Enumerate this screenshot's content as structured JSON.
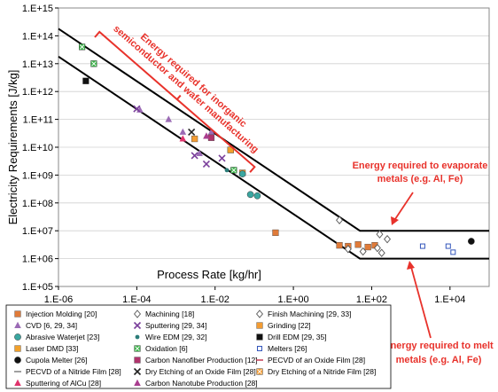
{
  "chart_data": {
    "type": "scatter",
    "title": "",
    "xlabel": "Process Rate [kg/hr]",
    "ylabel": "Electricity Requirements [J/kg]",
    "xscale": "log",
    "yscale": "log",
    "xlim": [
      1e-06,
      100000.0
    ],
    "ylim": [
      100000.0,
      1000000000000000.0
    ],
    "x_ticks": [
      "1.E-06",
      "1.E-04",
      "1.E-02",
      "1.E+00",
      "1.E+02",
      "1.E+04"
    ],
    "y_ticks": [
      "1.E+05",
      "1.E+06",
      "1.E+07",
      "1.E+08",
      "1.E+09",
      "1.E+10",
      "1.E+11",
      "1.E+12",
      "1.E+13",
      "1.E+14",
      "1.E+15"
    ],
    "grid": "horizontal",
    "legend_position": "bottom",
    "boundary_lines": [
      {
        "name": "upper",
        "points": [
          [
            1e-06,
            180000000000000.0
          ],
          [
            50,
            10000000.0
          ],
          [
            100000.0,
            10000000.0
          ]
        ]
      },
      {
        "name": "lower",
        "points": [
          [
            1e-06,
            18000000000000.0
          ],
          [
            50,
            1000000.0
          ],
          [
            100000.0,
            1000000.0
          ]
        ]
      }
    ],
    "series": [
      {
        "name": "Injection Molding [20]",
        "marker": "square",
        "color": "#e07b39",
        "points": [
          [
            0.35,
            8500000.0
          ],
          [
            15,
            3000000.0
          ],
          [
            25,
            2800000.0
          ],
          [
            45,
            3200000.0
          ],
          [
            80,
            2600000.0
          ],
          [
            120,
            3000000.0
          ]
        ]
      },
      {
        "name": "Machining [18]",
        "marker": "diamond-open",
        "color": "#555555",
        "points": [
          [
            25,
            2200000.0
          ],
          [
            60,
            1800000.0
          ],
          [
            140,
            2400000.0
          ],
          [
            180,
            1600000.0
          ]
        ]
      },
      {
        "name": "Finish Machining [29, 33]",
        "marker": "diamond-open",
        "color": "#555555",
        "points": [
          [
            15,
            24000000.0
          ],
          [
            160,
            7500000.0
          ],
          [
            250,
            5000000.0
          ]
        ]
      },
      {
        "name": "CVD [6, 29, 34]",
        "marker": "triangle",
        "color": "#9b6bb5",
        "points": [
          [
            0.00012,
            220000000000.0
          ],
          [
            0.00065,
            100000000000.0
          ],
          [
            0.0015,
            35000000000.0
          ],
          [
            0.004,
            6000000000.0
          ],
          [
            0.008,
            35000000000.0
          ]
        ]
      },
      {
        "name": "Sputtering [29, 34]",
        "marker": "x",
        "color": "#7a3f9b",
        "points": [
          [
            0.0001,
            240000000000.0
          ],
          [
            0.003,
            5000000000.0
          ],
          [
            0.006,
            2500000000.0
          ],
          [
            0.015,
            4000000000.0
          ]
        ]
      },
      {
        "name": "Grinding [22]",
        "marker": "square",
        "color": "#f39c33",
        "points": [
          [
            0.003,
            20000000000.0
          ],
          [
            0.025,
            8000000000.0
          ],
          [
            0.05,
            1200000000.0
          ]
        ]
      },
      {
        "name": "Abrasive Waterjet [23]",
        "marker": "circle",
        "color": "#3aa6a0",
        "points": [
          [
            0.05,
            1100000000.0
          ],
          [
            0.08,
            200000000.0
          ],
          [
            0.12,
            180000000.0
          ]
        ]
      },
      {
        "name": "Wire EDM [29, 32]",
        "marker": "circle-small",
        "color": "#2a7c78",
        "points": [
          [
            0.02,
            1500000000.0
          ],
          [
            0.03,
            1400000000.0
          ]
        ]
      },
      {
        "name": "Drill EDM [29, 35]",
        "marker": "square",
        "color": "#111111",
        "points": [
          [
            5e-06,
            2400000000000.0
          ]
        ]
      },
      {
        "name": "Laser DMD [33]",
        "marker": "square",
        "color": "#f1a02b",
        "points": [
          [
            0.025,
            8000000000.0
          ]
        ]
      },
      {
        "name": "Oxidation [6]",
        "marker": "square-x",
        "color": "#3cb34a",
        "points": [
          [
            4e-06,
            40000000000000.0
          ],
          [
            8e-06,
            10000000000000.0
          ],
          [
            0.03,
            1500000000.0
          ]
        ]
      },
      {
        "name": "Melters [26]",
        "marker": "square-small",
        "color": "#3355bb",
        "points": [
          [
            2000,
            2800000.0
          ],
          [
            9000,
            2800000.0
          ],
          [
            12000,
            1700000.0
          ]
        ]
      },
      {
        "name": "Cupola Melter [26]",
        "marker": "circle",
        "color": "#111111",
        "points": [
          [
            35000,
            4200000.0
          ]
        ]
      },
      {
        "name": "Carbon Nanofiber Production [12]",
        "marker": "square",
        "color": "#b0336c",
        "points": [
          [
            0.008,
            22000000000.0
          ]
        ]
      },
      {
        "name": "PECVD of an Oxide Film [28]",
        "marker": "dash",
        "color": "#c0304a",
        "points": []
      },
      {
        "name": "PECVD of a Nitride Film [28]",
        "marker": "dash",
        "color": "#777777",
        "points": []
      },
      {
        "name": "Dry Etching of an Oxide Film [28]",
        "marker": "x",
        "color": "#222222",
        "points": [
          [
            0.0025,
            35000000000.0
          ]
        ]
      },
      {
        "name": "Dry Etching of a Nitride Film [28]",
        "marker": "square-x",
        "color": "#f39c33",
        "points": []
      },
      {
        "name": "Sputtering of AlCu [28]",
        "marker": "triangle",
        "color": "#e0336c",
        "points": [
          [
            0.0015,
            20000000000.0
          ]
        ]
      },
      {
        "name": "Carbon Nanotube Production [28]",
        "marker": "triangle",
        "color": "#a93d8f",
        "points": [
          [
            0.006,
            25000000000.0
          ]
        ]
      }
    ],
    "annotations": [
      {
        "id": "semi",
        "text": [
          "Energy required for inorganic",
          "semiconductor and wafer manufacturing"
        ]
      },
      {
        "id": "evap",
        "text": [
          "Energy required to evaporate",
          "metals (e.g. Al, Fe)"
        ]
      },
      {
        "id": "melt",
        "text": [
          "Energy required to melt",
          "metals (e.g. Al, Fe)"
        ]
      }
    ]
  }
}
